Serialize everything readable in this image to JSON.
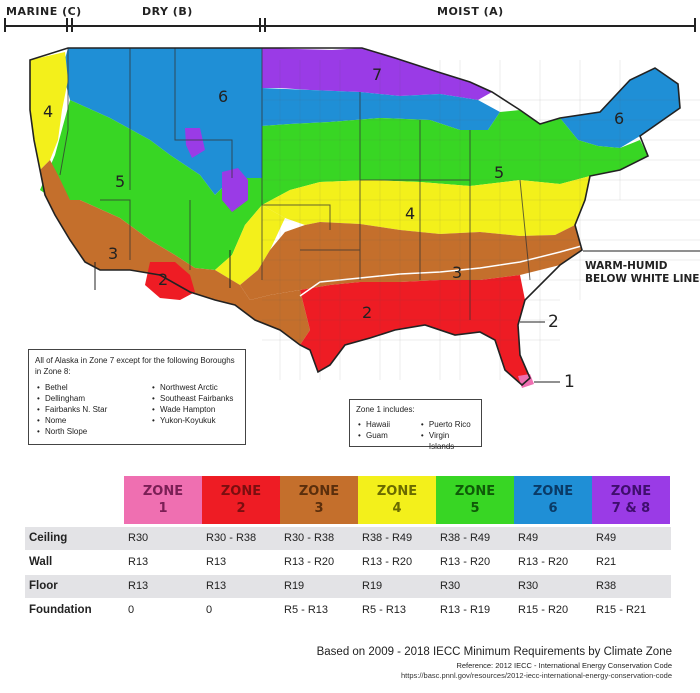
{
  "climate_bar": {
    "marine": "MARINE (C)",
    "dry": "DRY (B)",
    "moist": "MOIST (A)"
  },
  "map": {
    "zone_labels": [
      "7",
      "6",
      "6",
      "5",
      "5",
      "4",
      "4",
      "3",
      "3",
      "2",
      "2",
      "2",
      "1"
    ],
    "warm_humid_line1": "WARM-HUMID",
    "warm_humid_line2": "BELOW WHITE LINE",
    "colors": {
      "zone1": "#ef6fb1",
      "zone2": "#ee1c24",
      "zone3": "#c46f2c",
      "zone4": "#f3f01b",
      "zone5": "#38d624",
      "zone6": "#1f8fd6",
      "zone7": "#9a3be6"
    }
  },
  "alaska_box": {
    "title": "All of Alaska in Zone 7 except for the following Boroughs in Zone 8:",
    "col1": [
      "Bethel",
      "Dellingham",
      "Fairbanks N. Star",
      "Nome",
      "North Slope"
    ],
    "col2": [
      "Northwest Arctic",
      "Southeast Fairbanks",
      "Wade Hampton",
      "Yukon-Koyukuk"
    ]
  },
  "zone1_box": {
    "title": "Zone 1 includes:",
    "col1": [
      "Hawaii",
      "Guam"
    ],
    "col2": [
      "Puerto Rico",
      "Virgin Islands"
    ]
  },
  "table": {
    "zones": [
      {
        "line1": "ZONE",
        "line2": "1",
        "color": "#ef6fb1",
        "text": "#7a1f55"
      },
      {
        "line1": "ZONE",
        "line2": "2",
        "color": "#ee1c24",
        "text": "#7a0e10"
      },
      {
        "line1": "ZONE",
        "line2": "3",
        "color": "#c46f2c",
        "text": "#5a2e0c"
      },
      {
        "line1": "ZONE",
        "line2": "4",
        "color": "#f3f01b",
        "text": "#6a6a00"
      },
      {
        "line1": "ZONE",
        "line2": "5",
        "color": "#38d624",
        "text": "#0f5a08"
      },
      {
        "line1": "ZONE",
        "line2": "6",
        "color": "#1f8fd6",
        "text": "#0a3a66"
      },
      {
        "line1": "ZONE",
        "line2": "7 & 8",
        "color": "#9a3be6",
        "text": "#3f0e6e"
      }
    ],
    "rows": [
      {
        "label": "Ceiling",
        "values": [
          "R30",
          "R30 - R38",
          "R30 - R38",
          "R38 - R49",
          "R38 - R49",
          "R49",
          "R49"
        ]
      },
      {
        "label": "Wall",
        "values": [
          "R13",
          "R13",
          "R13 - R20",
          "R13 - R20",
          "R13 - R20",
          "R13 - R20",
          "R21"
        ]
      },
      {
        "label": "Floor",
        "values": [
          "R13",
          "R13",
          "R19",
          "R19",
          "R30",
          "R30",
          "R38"
        ]
      },
      {
        "label": "Foundation",
        "values": [
          "0",
          "0",
          "R5 - R13",
          "R5 - R13",
          "R13 - R19",
          "R15 - R20",
          "R15 - R21"
        ]
      }
    ]
  },
  "footer": {
    "main": "Based on 2009 - 2018 IECC Minimum Requirements by Climate Zone",
    "reference": "Reference: 2012 IECC - International Energy Conservation Code",
    "url": "https://basc.pnnl.gov/resources/2012-iecc-international-energy-conservation-code"
  }
}
